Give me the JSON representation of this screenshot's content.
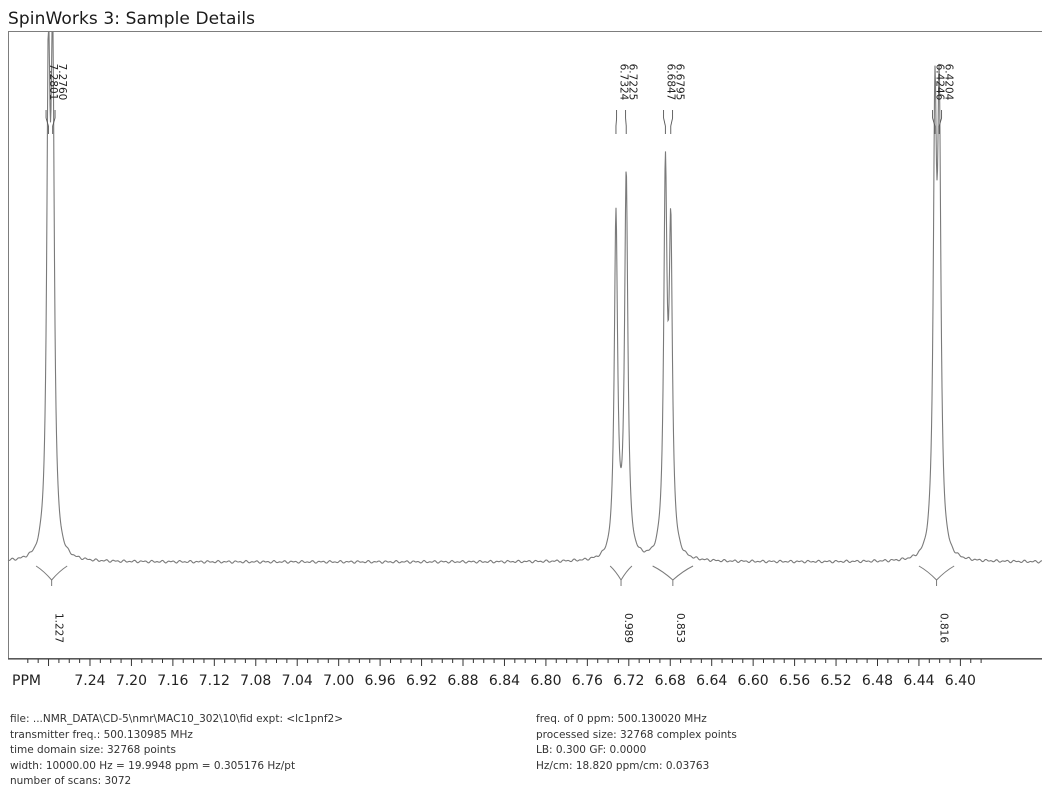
{
  "window": {
    "title": "SpinWorks 3: Sample Details"
  },
  "chart_data": {
    "type": "line",
    "title": "",
    "xlabel": "PPM",
    "ylabel": "",
    "x_reversed": true,
    "xlim": [
      7.297,
      6.391
    ],
    "x_ticks": [
      "7.24",
      "7.20",
      "7.16",
      "7.12",
      "7.08",
      "7.04",
      "7.00",
      "6.96",
      "6.92",
      "6.88",
      "6.84",
      "6.80",
      "6.76",
      "6.72",
      "6.68",
      "6.64",
      "6.60",
      "6.56",
      "6.52",
      "6.48",
      "6.44",
      "6.40"
    ],
    "grid": false,
    "line_color": "#7a7a7a",
    "peaks": [
      {
        "ppm": 7.2801,
        "height": 0.278
      },
      {
        "ppm": 7.276,
        "height": 0.282
      },
      {
        "ppm": 6.7324,
        "height": 0.201
      },
      {
        "ppm": 6.7225,
        "height": 0.225
      },
      {
        "ppm": 6.6847,
        "height": 0.22
      },
      {
        "ppm": 6.6795,
        "height": 0.183
      },
      {
        "ppm": 6.4246,
        "height": 0.249
      },
      {
        "ppm": 6.4204,
        "height": 0.251
      }
    ],
    "peak_labels": [
      {
        "groups": [
          {
            "label": "7.2801",
            "ppm": 7.2801
          },
          {
            "label": "7.2760",
            "ppm": 7.276
          }
        ]
      },
      {
        "groups": [
          {
            "label": "6.7324",
            "ppm": 6.7324
          },
          {
            "label": "6.7225",
            "ppm": 6.7225
          }
        ]
      },
      {
        "groups": [
          {
            "label": "6.6847",
            "ppm": 6.6847
          },
          {
            "label": "6.6795",
            "ppm": 6.6795
          }
        ]
      },
      {
        "groups": [
          {
            "label": "6.4246",
            "ppm": 6.4246
          },
          {
            "label": "6.4204",
            "ppm": 6.4204
          }
        ]
      }
    ],
    "integrals": [
      {
        "value": "1.227",
        "ppm_start": 7.292,
        "ppm_end": 7.262
      },
      {
        "value": "0.989",
        "ppm_start": 6.738,
        "ppm_end": 6.717
      },
      {
        "value": "0.853",
        "ppm_start": 6.697,
        "ppm_end": 6.658
      },
      {
        "value": "0.816",
        "ppm_start": 6.44,
        "ppm_end": 6.406
      }
    ]
  },
  "info_left": [
    "file: ...NMR_DATA\\CD-5\\nmr\\MAC10_302\\10\\fid   expt: <lc1pnf2>",
    "transmitter freq.: 500.130985 MHz",
    "time domain size: 32768 points",
    "width: 10000.00 Hz = 19.9948 ppm = 0.305176 Hz/pt",
    "number of scans: 3072"
  ],
  "info_right": [
    "freq. of 0 ppm: 500.130020 MHz",
    "processed size: 32768 complex points",
    "LB: 0.300    GF: 0.0000",
    "Hz/cm: 18.820    ppm/cm: 0.03763"
  ]
}
